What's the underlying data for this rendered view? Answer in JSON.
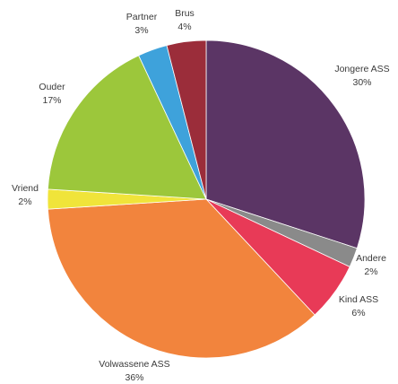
{
  "chart_data": {
    "type": "pie",
    "title": "",
    "slices": [
      {
        "label": "Jongere ASS",
        "value": 30,
        "value_label": "30%",
        "color": "#5b3565"
      },
      {
        "label": "Andere",
        "value": 2,
        "value_label": "2%",
        "color": "#8a8a8a"
      },
      {
        "label": "Kind ASS",
        "value": 6,
        "value_label": "6%",
        "color": "#e83a57"
      },
      {
        "label": "Volwassene ASS",
        "value": 36,
        "value_label": "36%",
        "color": "#f2843d"
      },
      {
        "label": "Vriend",
        "value": 2,
        "value_label": "2%",
        "color": "#f0e43a"
      },
      {
        "label": "Ouder",
        "value": 17,
        "value_label": "17%",
        "color": "#9cc73b"
      },
      {
        "label": "Partner",
        "value": 3,
        "value_label": "3%",
        "color": "#3ea2db"
      },
      {
        "label": "Brus",
        "value": 4,
        "value_label": "4%",
        "color": "#9b2d3a"
      }
    ],
    "start_angle_deg": 0,
    "direction": "clockwise",
    "legend": "none"
  }
}
